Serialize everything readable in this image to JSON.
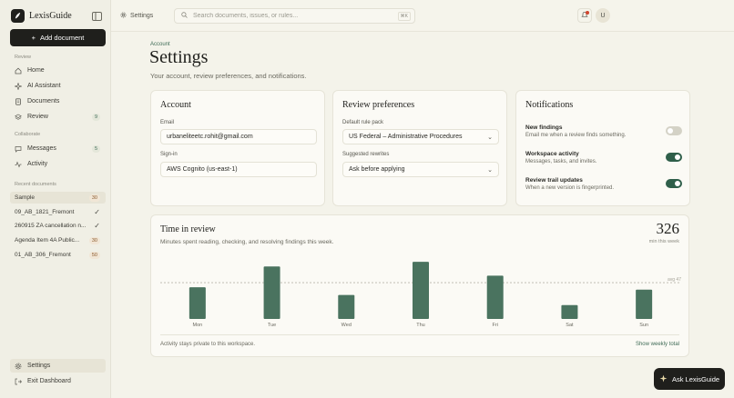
{
  "brand": {
    "name": "LexisGuide"
  },
  "sidebar": {
    "add_document": "Add document",
    "sections": {
      "review": "Review",
      "collaborate": "Collaborate",
      "recent": "Recent documents"
    },
    "review_items": [
      {
        "label": "Home",
        "icon": "home-icon"
      },
      {
        "label": "AI Assistant",
        "icon": "sparkle-icon"
      },
      {
        "label": "Documents",
        "icon": "document-icon"
      },
      {
        "label": "Review",
        "icon": "layers-icon",
        "badge": "9"
      }
    ],
    "collab_items": [
      {
        "label": "Messages",
        "icon": "chat-icon",
        "badge": "5"
      },
      {
        "label": "Activity",
        "icon": "activity-icon"
      }
    ],
    "recent_docs": [
      {
        "label": "Sample",
        "count": "30"
      },
      {
        "label": "09_AB_1821_Fremont",
        "status": "✓"
      },
      {
        "label": "260915 ZA cancellation n...",
        "status": "✓"
      },
      {
        "label": "Agenda Item 4A Public...",
        "count": "30"
      },
      {
        "label": "01_AB_306_Fremont",
        "count": "50"
      }
    ],
    "settings": "Settings",
    "exit": "Exit Dashboard"
  },
  "topbar": {
    "breadcrumb": "Settings",
    "search_placeholder": "Search documents, issues, or rules...",
    "search_shortcut": "⌘K",
    "avatar_initial": "U"
  },
  "page": {
    "overline": "Account",
    "title": "Settings",
    "subtitle": "Your account, review preferences, and notifications."
  },
  "account": {
    "title": "Account",
    "email_label": "Email",
    "email": "urbaneliteetc.rohit@gmail.com",
    "signin_label": "Sign-in",
    "signin": "AWS Cognito (us-east-1)"
  },
  "review_prefs": {
    "title": "Review preferences",
    "rule_pack_label": "Default rule pack",
    "rule_pack": "US Federal – Administrative Procedures",
    "rewrites_label": "Suggested rewrites",
    "rewrites": "Ask before applying"
  },
  "notifications": {
    "title": "Notifications",
    "items": [
      {
        "title": "New findings",
        "desc": "Email me when a review finds something.",
        "enabled": false
      },
      {
        "title": "Workspace activity",
        "desc": "Messages, tasks, and invites.",
        "enabled": true
      },
      {
        "title": "Review trail updates",
        "desc": "When a new version is fingerprinted.",
        "enabled": true
      }
    ]
  },
  "time_card": {
    "title": "Time in review",
    "subtitle": "Minutes spent reading, checking, and resolving findings this week.",
    "total": "326",
    "total_label": "min this week",
    "footer_note": "Activity stays private to this workspace.",
    "footer_link": "Show weekly total"
  },
  "chart_data": {
    "type": "bar",
    "categories": [
      "Mon",
      "Tue",
      "Wed",
      "Thu",
      "Fri",
      "Sat",
      "Sun"
    ],
    "values": [
      41,
      68,
      31,
      74,
      56,
      18,
      38
    ],
    "avg": 47,
    "avg_label": "avg 47",
    "ylim": [
      0,
      80
    ],
    "color": "#4a735f"
  },
  "ask_button": "Ask LexisGuide",
  "colors": {
    "accent": "#2f5f4a",
    "dark": "#1f1f1c",
    "background": "#f4f3ea"
  }
}
